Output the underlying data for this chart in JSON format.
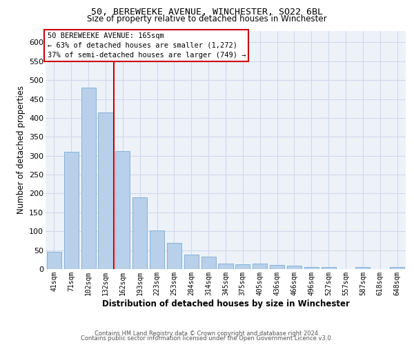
{
  "title": "50, BEREWEEKE AVENUE, WINCHESTER, SO22 6BL",
  "subtitle": "Size of property relative to detached houses in Winchester",
  "xlabel": "Distribution of detached houses by size in Winchester",
  "ylabel": "Number of detached properties",
  "bar_color": "#b8d0ea",
  "bar_edge_color": "#7aaad0",
  "categories": [
    "41sqm",
    "71sqm",
    "102sqm",
    "132sqm",
    "162sqm",
    "193sqm",
    "223sqm",
    "253sqm",
    "284sqm",
    "314sqm",
    "345sqm",
    "375sqm",
    "405sqm",
    "436sqm",
    "466sqm",
    "496sqm",
    "527sqm",
    "557sqm",
    "587sqm",
    "618sqm",
    "648sqm"
  ],
  "values": [
    46,
    311,
    480,
    415,
    313,
    190,
    102,
    70,
    38,
    32,
    15,
    13,
    15,
    11,
    10,
    6,
    5,
    0,
    5,
    0,
    5
  ],
  "ylim": [
    0,
    630
  ],
  "yticks": [
    0,
    50,
    100,
    150,
    200,
    250,
    300,
    350,
    400,
    450,
    500,
    550,
    600
  ],
  "vline_index": 3.5,
  "annotation_line1": "50 BEREWEEKE AVENUE: 165sqm",
  "annotation_line2": "← 63% of detached houses are smaller (1,272)",
  "annotation_line3": "37% of semi-detached houses are larger (749) →",
  "annotation_box_color": "#ffffff",
  "annotation_box_edge": "#cc0000",
  "vline_color": "#cc0000",
  "footer1": "Contains HM Land Registry data © Crown copyright and database right 2024.",
  "footer2": "Contains public sector information licensed under the Open Government Licence v3.0.",
  "grid_color": "#d0d8e8",
  "background_color": "#edf2f9"
}
